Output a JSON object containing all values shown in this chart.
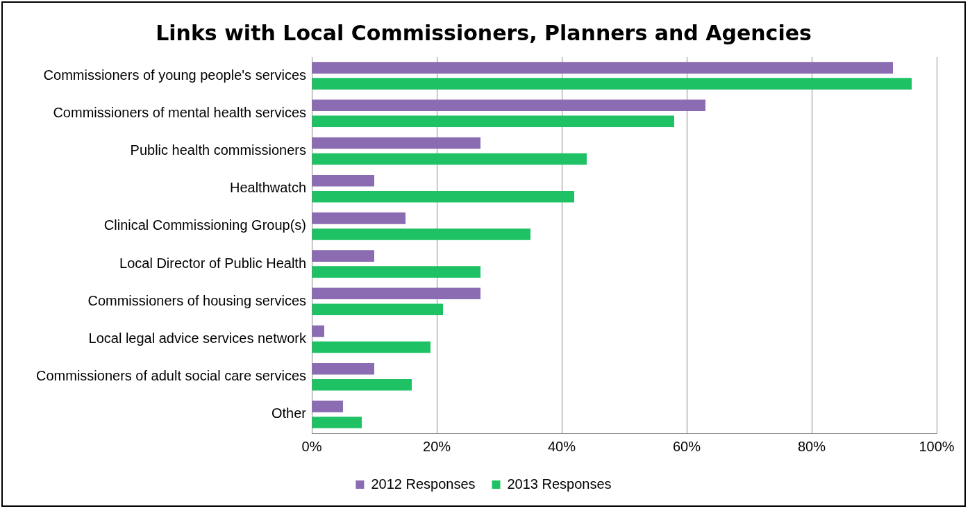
{
  "chart_data": {
    "type": "bar",
    "orientation": "horizontal",
    "title": "Links with Local Commissioners, Planners and Agencies",
    "categories": [
      "Commissioners of young people's services",
      "Commissioners of mental health services",
      "Public health commissioners",
      "Healthwatch",
      "Clinical Commissioning Group(s)",
      "Local Director of Public Health",
      "Commissioners of housing services",
      "Local legal advice services network",
      "Commissioners of adult social care services",
      "Other"
    ],
    "series": [
      {
        "name": "2012 Responses",
        "color": "#8b6bb1",
        "values": [
          93,
          63,
          27,
          10,
          15,
          10,
          27,
          2,
          10,
          5
        ]
      },
      {
        "name": "2013 Responses",
        "color": "#1ec265",
        "values": [
          96,
          58,
          44,
          42,
          35,
          27,
          21,
          19,
          16,
          8
        ]
      }
    ],
    "xlim": [
      0,
      100
    ],
    "xticks": [
      {
        "value": 0,
        "label": "0%"
      },
      {
        "value": 20,
        "label": "20%"
      },
      {
        "value": 40,
        "label": "40%"
      },
      {
        "value": 60,
        "label": "60%"
      },
      {
        "value": 80,
        "label": "80%"
      },
      {
        "value": 100,
        "label": "100%"
      }
    ],
    "grid": "x",
    "legend": "bottom"
  }
}
